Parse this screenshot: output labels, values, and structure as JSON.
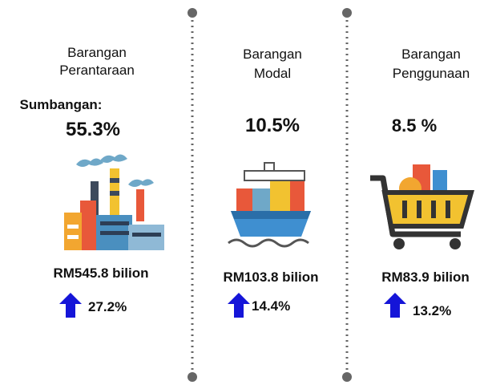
{
  "contribution_label": "Sumbangan:",
  "columns": [
    {
      "title_lines": [
        "Barangan",
        "Perantaraan"
      ],
      "share": "55.3%",
      "value": "RM545.8 bilion",
      "growth": "27.2%"
    },
    {
      "title_lines": [
        "Barangan",
        "Modal"
      ],
      "share": "10.5%",
      "value": "RM103.8 bilion",
      "growth": "14.4%"
    },
    {
      "title_lines": [
        "Barangan",
        "Penggunaan"
      ],
      "share": "8.5 %",
      "value": "RM83.9 bilion",
      "growth": "13.2%"
    }
  ]
}
